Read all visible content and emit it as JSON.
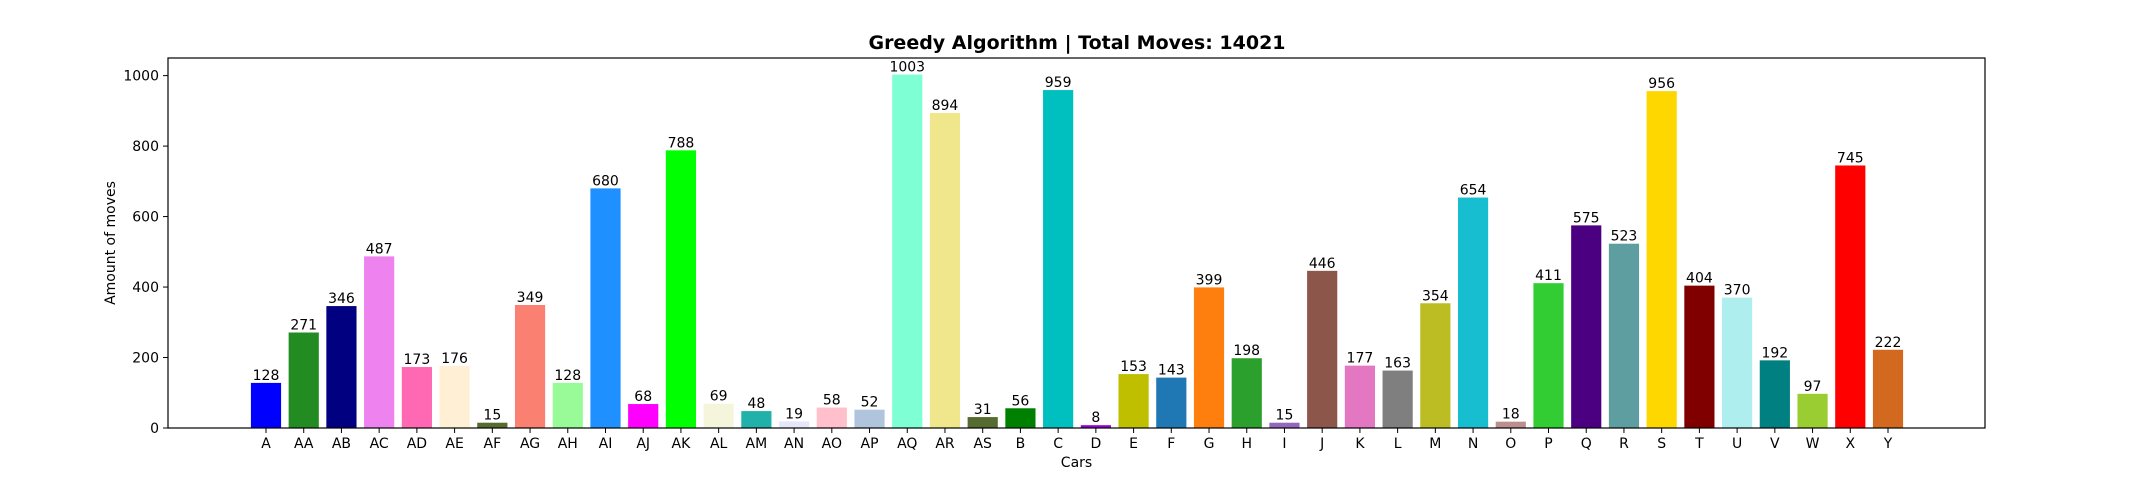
{
  "chart_data": {
    "type": "bar",
    "title": "Greedy Algorithm | Total Moves: 14021",
    "xlabel": "Cars",
    "ylabel": "Amount of moves",
    "ylim": [
      0,
      1050
    ],
    "yticks": [
      "0",
      "200",
      "400",
      "600",
      "800",
      "1000"
    ],
    "grid": false,
    "legend": "none",
    "categories": [
      "A",
      "AA",
      "AB",
      "AC",
      "AD",
      "AE",
      "AF",
      "AG",
      "AH",
      "AI",
      "AJ",
      "AK",
      "AL",
      "AM",
      "AN",
      "AO",
      "AP",
      "AQ",
      "AR",
      "AS",
      "B",
      "C",
      "D",
      "E",
      "F",
      "G",
      "H",
      "I",
      "J",
      "K",
      "L",
      "M",
      "N",
      "O",
      "P",
      "Q",
      "R",
      "S",
      "T",
      "U",
      "V",
      "W",
      "X",
      "Y"
    ],
    "values": [
      128,
      271,
      346,
      487,
      173,
      176,
      15,
      349,
      128,
      680,
      68,
      788,
      69,
      48,
      19,
      58,
      52,
      1003,
      894,
      31,
      56,
      959,
      8,
      153,
      143,
      399,
      198,
      15,
      446,
      177,
      163,
      354,
      654,
      18,
      411,
      575,
      523,
      956,
      404,
      370,
      192,
      97,
      745,
      222
    ],
    "colors": [
      "#0000ff",
      "#228b22",
      "#000080",
      "#ee82ee",
      "#ff69b4",
      "#ffefd5",
      "#556b2f",
      "#fa8072",
      "#98fb98",
      "#1e90ff",
      "#ff00ff",
      "#00ff00",
      "#f5f5dc",
      "#20b2aa",
      "#e6e6fa",
      "#ffc0cb",
      "#b0c4de",
      "#7fffd4",
      "#f0e68c",
      "#556b2f",
      "#008000",
      "#00bfbf",
      "#9400d3",
      "#bfbf00",
      "#1f77b4",
      "#ff7f0e",
      "#2ca02c",
      "#9467bd",
      "#8c564b",
      "#e377c2",
      "#7f7f7f",
      "#bcbd22",
      "#17becf",
      "#bc8f8f",
      "#32cd32",
      "#4b0082",
      "#5f9ea0",
      "#ffd700",
      "#800000",
      "#afeeee",
      "#008080",
      "#9acd32",
      "#ff0000",
      "#d2691e"
    ]
  }
}
